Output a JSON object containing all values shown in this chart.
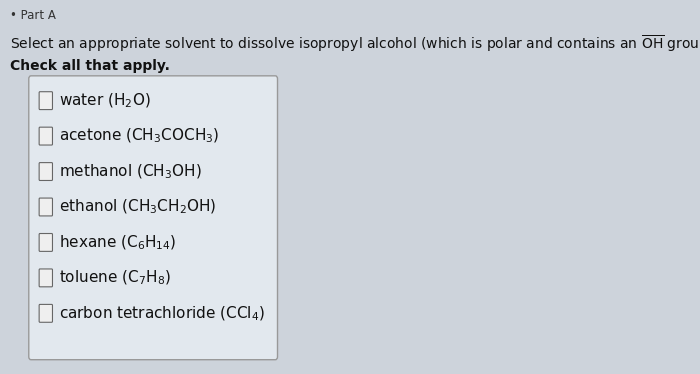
{
  "background_color": "#cdd3db",
  "title_part": "Part A",
  "question_plain": "Select an appropriate solvent to dissolve isopropyl alcohol (which is polar and contains an ",
  "question_oh": "OH",
  "question_end": " group) .",
  "instruction": "Check all that apply.",
  "options_math": [
    "water $(\\mathrm{H_2O})$",
    "acetone $(\\mathrm{CH_3COCH_3})$",
    "methanol $(\\mathrm{CH_3OH})$",
    "ethanol $(\\mathrm{CH_3CH_2OH})$",
    "hexane $(\\mathrm{C_6H_{14}})$",
    "toluene $(\\mathrm{C_7H_8})$",
    "carbon tetrachloride $(\\mathrm{CCl_4})$"
  ],
  "question_fontsize": 10.0,
  "option_fontsize": 11.0,
  "text_color": "#111111",
  "box_bg": "#e2e8ee",
  "box_edge": "#999999"
}
